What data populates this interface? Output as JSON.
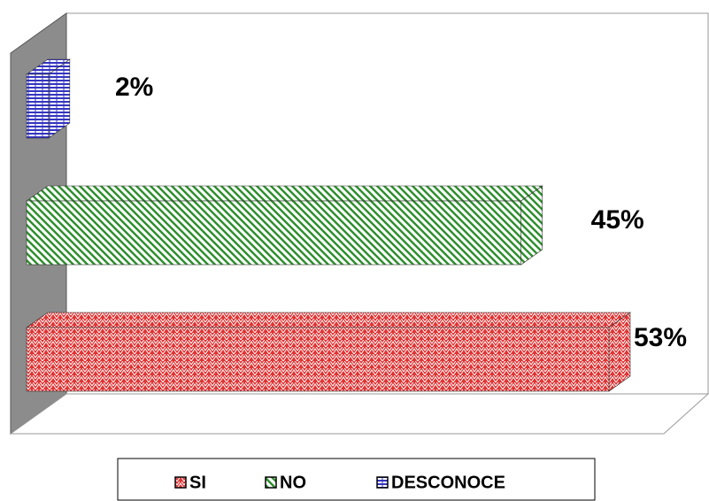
{
  "chart_data": {
    "type": "bar",
    "orientation": "horizontal",
    "legend": "bottom",
    "series": [
      {
        "name": "SI",
        "color": "#e03434",
        "values": [
          53
        ],
        "value_labels": [
          "53%"
        ]
      },
      {
        "name": "NO",
        "color": "#2f8f2f",
        "values": [
          45
        ],
        "value_labels": [
          "45%"
        ]
      },
      {
        "name": "DESCONOCE",
        "color": "#3434c0",
        "values": [
          2
        ],
        "value_labels": [
          "2%"
        ]
      }
    ]
  }
}
